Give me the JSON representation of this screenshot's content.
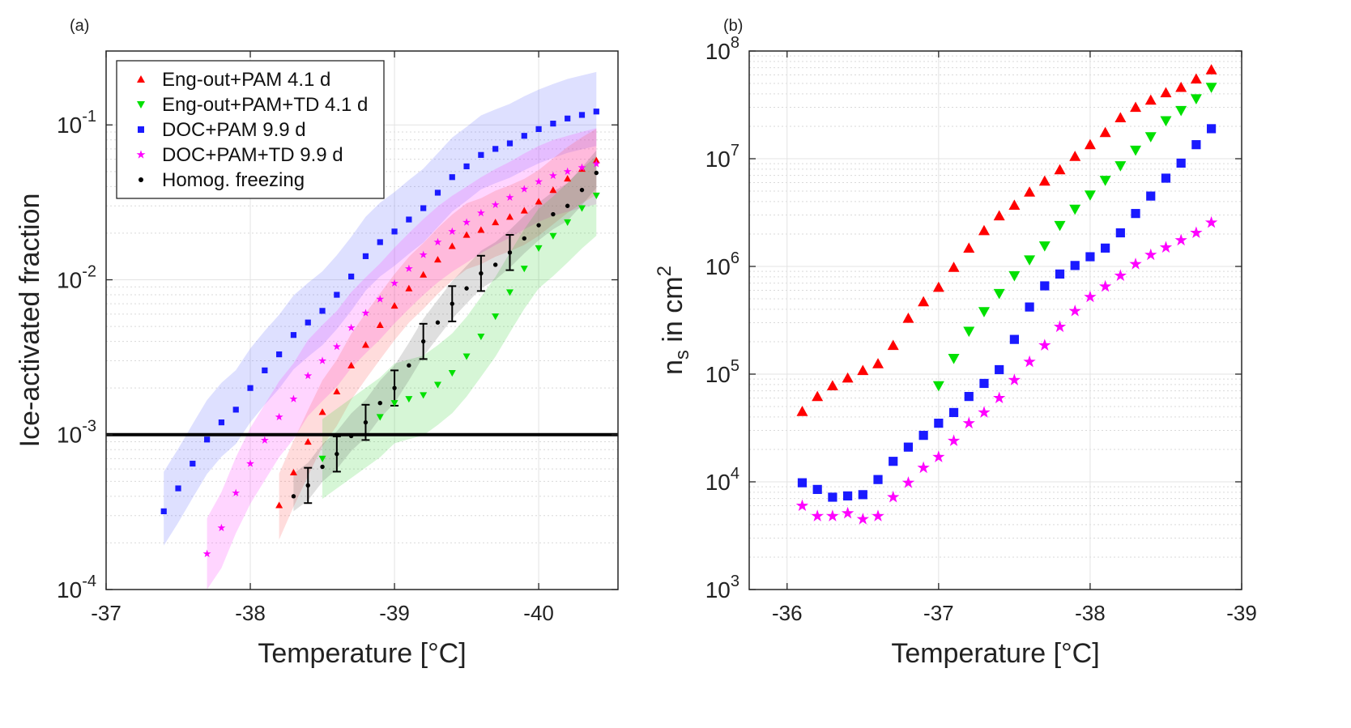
{
  "chart_data": [
    {
      "panel_label": "(a)",
      "type": "scatter",
      "xlabel": "Temperature [°C]",
      "ylabel": "Ice-activated fraction",
      "xlim": [
        -37,
        -40.55
      ],
      "x_reversed": true,
      "ylim": [
        0.0001,
        0.3
      ],
      "yscale": "log",
      "x_ticks": [
        "-37",
        "-38",
        "-39",
        "-40"
      ],
      "y_ticks": [
        {
          "base": "10",
          "exp": "-4"
        },
        {
          "base": "10",
          "exp": "-3"
        },
        {
          "base": "10",
          "exp": "-2"
        },
        {
          "base": "10",
          "exp": "-1"
        }
      ],
      "grid": true,
      "legend_position": "top-left",
      "threshold_line": 0.001,
      "series": [
        {
          "name": "Eng-out+PAM 4.1 d",
          "color": "#ff0000",
          "marker": "triangle-up",
          "x": [
            -38.2,
            -38.3,
            -38.4,
            -38.5,
            -38.6,
            -38.7,
            -38.8,
            -38.9,
            -39.0,
            -39.1,
            -39.2,
            -39.3,
            -39.4,
            -39.5,
            -39.6,
            -39.7,
            -39.8,
            -39.9,
            -40.0,
            -40.1,
            -40.2,
            -40.3,
            -40.4
          ],
          "y": [
            0.00035,
            0.00057,
            0.0009,
            0.0014,
            0.0019,
            0.0028,
            0.0038,
            0.0051,
            0.0068,
            0.0088,
            0.0108,
            0.0135,
            0.0165,
            0.0195,
            0.021,
            0.0235,
            0.0255,
            0.028,
            0.032,
            0.038,
            0.045,
            0.052,
            0.059
          ]
        },
        {
          "name": "Eng-out+PAM+TD 4.1 d",
          "color": "#00e000",
          "marker": "triangle-down",
          "x": [
            -38.5,
            -38.9,
            -39.0,
            -39.1,
            -39.2,
            -39.3,
            -39.4,
            -39.5,
            -39.6,
            -39.7,
            -39.8,
            -39.9,
            -40.0,
            -40.1,
            -40.2,
            -40.3,
            -40.4
          ],
          "y": [
            0.0007,
            0.0013,
            0.0016,
            0.0017,
            0.0018,
            0.0021,
            0.0025,
            0.0032,
            0.0043,
            0.0058,
            0.0083,
            0.0118,
            0.016,
            0.0192,
            0.0235,
            0.029,
            0.035
          ]
        },
        {
          "name": "DOC+PAM 9.9 d",
          "color": "#1a1aff",
          "marker": "square",
          "x": [
            -37.4,
            -37.5,
            -37.6,
            -37.7,
            -37.8,
            -37.9,
            -38.0,
            -38.1,
            -38.2,
            -38.3,
            -38.4,
            -38.5,
            -38.6,
            -38.7,
            -38.8,
            -38.9,
            -39.0,
            -39.1,
            -39.2,
            -39.3,
            -39.4,
            -39.5,
            -39.6,
            -39.7,
            -39.8,
            -39.9,
            -40.0,
            -40.1,
            -40.2,
            -40.3,
            -40.4
          ],
          "y": [
            0.00032,
            0.00045,
            0.00065,
            0.00093,
            0.0012,
            0.00145,
            0.002,
            0.0026,
            0.0033,
            0.0044,
            0.0053,
            0.0063,
            0.008,
            0.0105,
            0.0142,
            0.0175,
            0.0205,
            0.0245,
            0.029,
            0.0365,
            0.046,
            0.054,
            0.064,
            0.07,
            0.076,
            0.085,
            0.094,
            0.102,
            0.11,
            0.116,
            0.122
          ]
        },
        {
          "name": "DOC+PAM+TD 9.9 d",
          "color": "#ff00ff",
          "marker": "star",
          "x": [
            -37.7,
            -37.8,
            -37.9,
            -38.0,
            -38.1,
            -38.2,
            -38.3,
            -38.4,
            -38.5,
            -38.6,
            -38.7,
            -38.8,
            -38.9,
            -39.0,
            -39.1,
            -39.2,
            -39.3,
            -39.4,
            -39.5,
            -39.6,
            -39.7,
            -39.8,
            -39.9,
            -40.0,
            -40.1,
            -40.2,
            -40.3,
            -40.4
          ],
          "y": [
            0.00017,
            0.00025,
            0.00042,
            0.00065,
            0.00092,
            0.0013,
            0.0017,
            0.0024,
            0.003,
            0.0037,
            0.0049,
            0.0061,
            0.0075,
            0.0095,
            0.0118,
            0.0145,
            0.0175,
            0.0205,
            0.0235,
            0.027,
            0.0305,
            0.034,
            0.0385,
            0.043,
            0.047,
            0.05,
            0.053,
            0.056
          ]
        },
        {
          "name": "Homog. freezing",
          "color": "#000000",
          "marker": "circle",
          "x": [
            -38.3,
            -38.4,
            -38.5,
            -38.6,
            -38.7,
            -38.8,
            -38.9,
            -39.0,
            -39.1,
            -39.2,
            -39.3,
            -39.4,
            -39.5,
            -39.6,
            -39.7,
            -39.8,
            -39.9,
            -40.0,
            -40.1,
            -40.2,
            -40.3,
            -40.4
          ],
          "y": [
            0.0004,
            0.00047,
            0.00062,
            0.00075,
            0.00098,
            0.0012,
            0.0016,
            0.002,
            0.0028,
            0.004,
            0.0053,
            0.007,
            0.0088,
            0.011,
            0.0125,
            0.015,
            0.0185,
            0.0225,
            0.0265,
            0.03,
            0.038,
            0.049
          ]
        }
      ]
    },
    {
      "panel_label": "(b)",
      "type": "scatter",
      "xlabel": "Temperature [°C]",
      "ylabel_base": "n",
      "ylabel_sub": "s",
      "ylabel_rest": " in cm",
      "ylabel_sup": "2",
      "xlim": [
        -35.75,
        -39.0
      ],
      "x_reversed": true,
      "ylim": [
        1000,
        100000000
      ],
      "yscale": "log",
      "x_ticks": [
        "-36",
        "-37",
        "-38",
        "-39"
      ],
      "y_ticks": [
        {
          "base": "10",
          "exp": "3"
        },
        {
          "base": "10",
          "exp": "4"
        },
        {
          "base": "10",
          "exp": "5"
        },
        {
          "base": "10",
          "exp": "6"
        },
        {
          "base": "10",
          "exp": "7"
        },
        {
          "base": "10",
          "exp": "8"
        }
      ],
      "grid": true,
      "series": [
        {
          "color": "#ff0000",
          "marker": "triangle-up",
          "x": [
            -36.1,
            -36.2,
            -36.3,
            -36.4,
            -36.5,
            -36.6,
            -36.7,
            -36.8,
            -36.9,
            -37.0,
            -37.1,
            -37.2,
            -37.3,
            -37.4,
            -37.5,
            -37.6,
            -37.7,
            -37.8,
            -37.9,
            -38.0,
            -38.1,
            -38.2,
            -38.3,
            -38.4,
            -38.5,
            -38.6,
            -38.7,
            -38.8
          ],
          "y": [
            45000,
            62000,
            78000,
            92000,
            108000,
            125000,
            185000,
            330000,
            470000,
            640000,
            980000,
            1480000,
            2150000,
            2950000,
            3700000,
            4900000,
            6200000,
            7900000,
            10500000,
            13500000,
            17500000,
            24000000,
            30000000,
            35000000,
            41000000,
            46000000,
            55000000,
            67000000
          ]
        },
        {
          "color": "#00e000",
          "marker": "triangle-down",
          "x": [
            -37.0,
            -37.1,
            -37.2,
            -37.3,
            -37.4,
            -37.5,
            -37.6,
            -37.7,
            -37.8,
            -37.9,
            -38.0,
            -38.1,
            -38.2,
            -38.3,
            -38.4,
            -38.5,
            -38.6,
            -38.7,
            -38.8
          ],
          "y": [
            78000,
            140000,
            250000,
            380000,
            560000,
            820000,
            1150000,
            1550000,
            2400000,
            3400000,
            4600000,
            6300000,
            8600000,
            12000000,
            16000000,
            22500000,
            28000000,
            36000000,
            46000000
          ]
        },
        {
          "color": "#1a1aff",
          "marker": "square",
          "x": [
            -36.1,
            -36.2,
            -36.3,
            -36.4,
            -36.5,
            -36.6,
            -36.7,
            -36.8,
            -36.9,
            -37.0,
            -37.1,
            -37.2,
            -37.3,
            -37.4,
            -37.5,
            -37.6,
            -37.7,
            -37.8,
            -37.9,
            -38.0,
            -38.1,
            -38.2,
            -38.3,
            -38.4,
            -38.5,
            -38.6,
            -38.7,
            -38.8
          ],
          "y": [
            9800,
            8500,
            7200,
            7400,
            7600,
            10500,
            15500,
            21000,
            27000,
            35000,
            44000,
            62000,
            82000,
            110000,
            210000,
            420000,
            660000,
            850000,
            1020000,
            1230000,
            1480000,
            2050000,
            3100000,
            4500000,
            6600000,
            9100000,
            13500000,
            19000000
          ]
        },
        {
          "color": "#ff00ff",
          "marker": "star",
          "x": [
            -36.1,
            -36.2,
            -36.3,
            -36.4,
            -36.5,
            -36.6,
            -36.7,
            -36.8,
            -36.9,
            -37.0,
            -37.1,
            -37.2,
            -37.3,
            -37.4,
            -37.5,
            -37.6,
            -37.7,
            -37.8,
            -37.9,
            -38.0,
            -38.1,
            -38.2,
            -38.3,
            -38.4,
            -38.5,
            -38.6,
            -38.7,
            -38.8
          ],
          "y": [
            6000,
            4800,
            4800,
            5100,
            4500,
            4800,
            7200,
            9800,
            13500,
            17000,
            24000,
            35000,
            44000,
            60000,
            88000,
            130000,
            185000,
            275000,
            385000,
            520000,
            650000,
            820000,
            1050000,
            1280000,
            1500000,
            1750000,
            2050000,
            2550000
          ]
        }
      ]
    }
  ]
}
